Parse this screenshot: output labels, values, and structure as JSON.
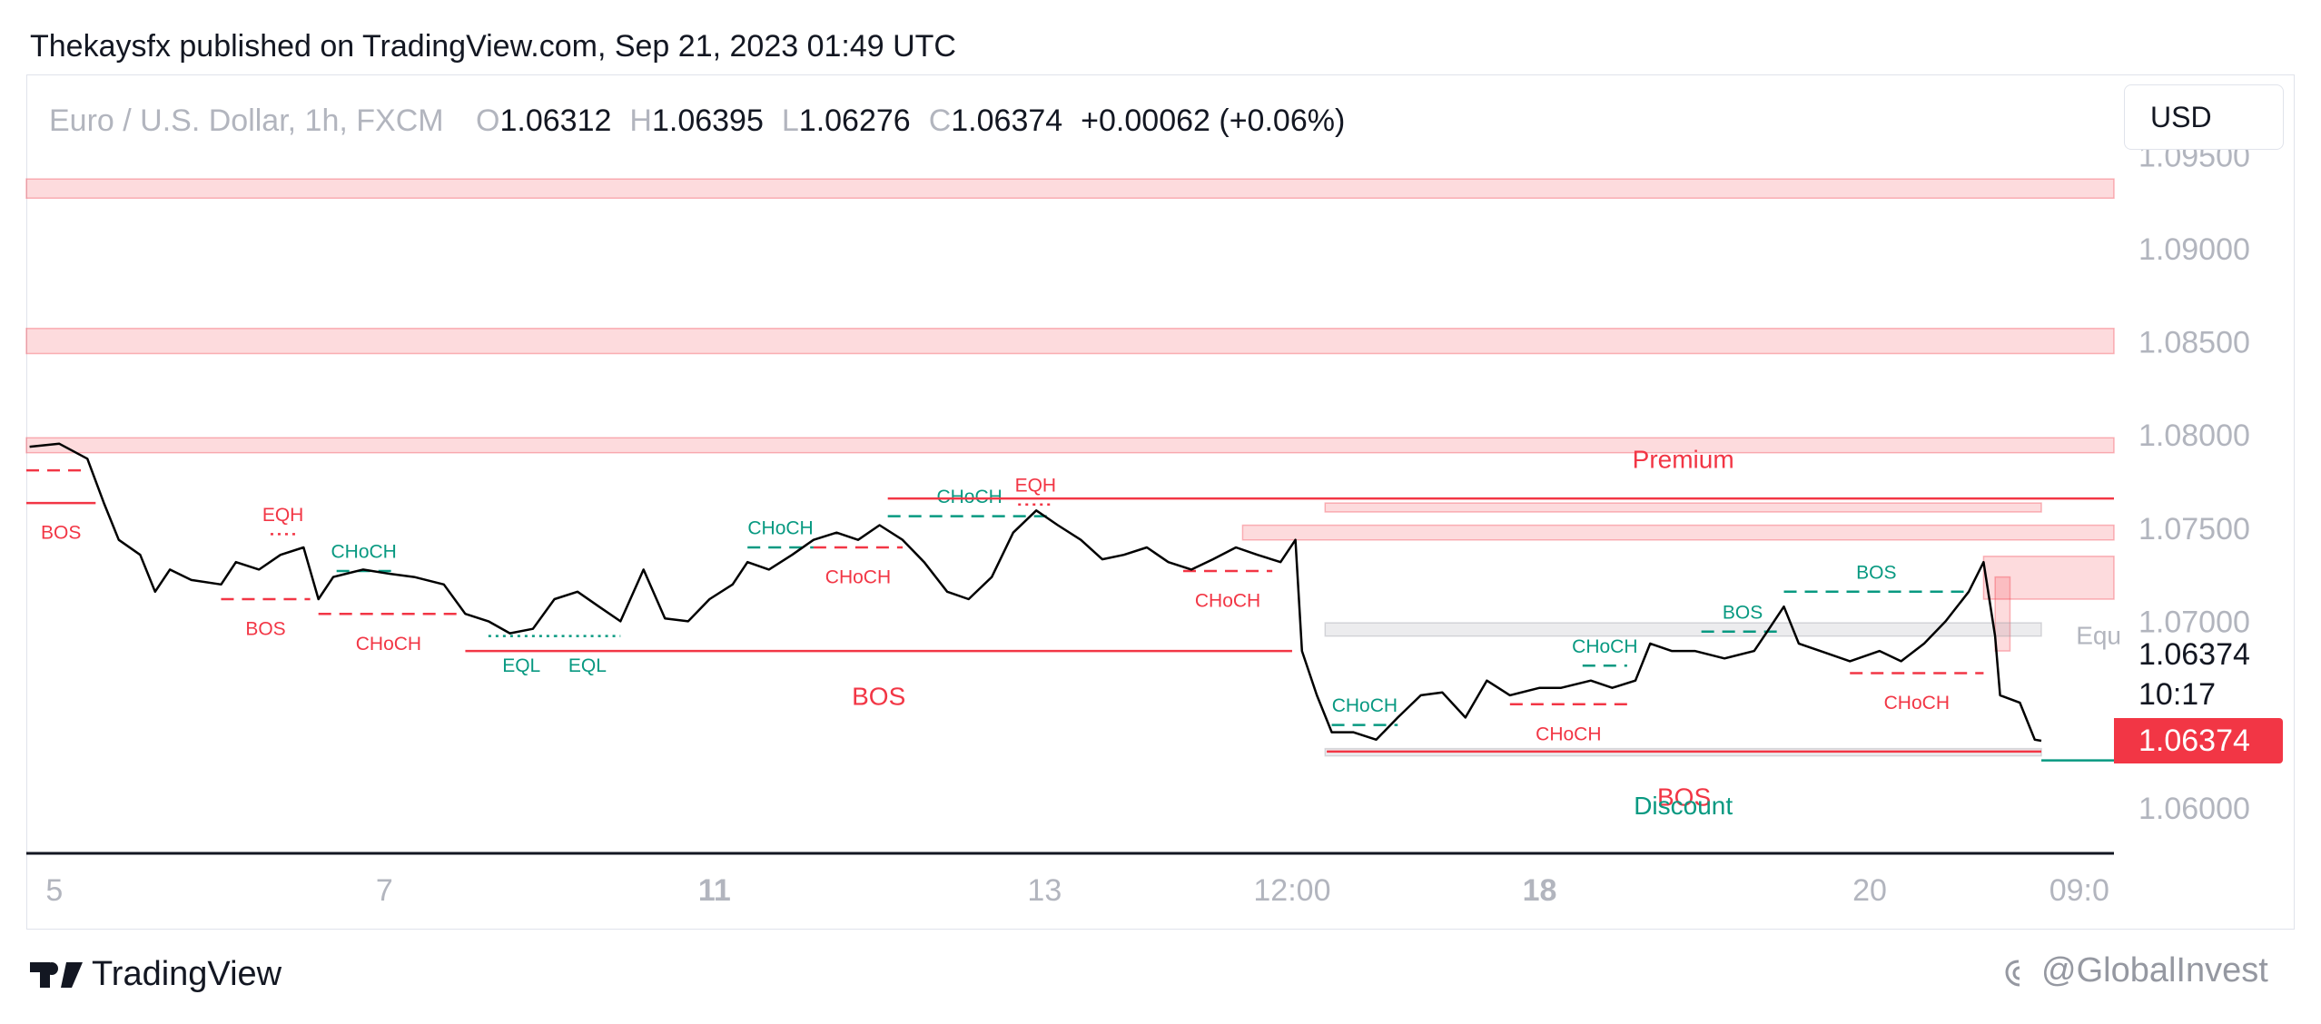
{
  "chart_data": {
    "type": "line",
    "header": "Thekaysfx published on TradingView.com, Sep 21, 2023 01:49 UTC",
    "symbol": "Euro / U.S. Dollar, 1h, FXCM",
    "ohlc": [
      {
        "label": "O",
        "value": 1.06312
      },
      {
        "label": "H",
        "value": 1.06395
      },
      {
        "label": "L",
        "value": 1.06276
      },
      {
        "label": "C",
        "value": 1.06374
      }
    ],
    "change": "+0.00062 (+0.06%)",
    "currency": "USD",
    "last_price": 1.06374,
    "countdown": "10:17",
    "brand": "TradingView",
    "watermark": "@GlobalInvest",
    "color": "#000000",
    "grid": false,
    "x": [
      -0.15,
      0.03,
      0.2,
      0.3,
      0.39,
      0.52,
      0.61,
      0.7,
      0.83,
      1.01,
      1.1,
      1.24,
      1.37,
      1.51,
      1.6,
      1.69,
      1.87,
      2.04,
      2.18,
      2.36,
      2.49,
      2.63,
      2.76,
      2.9,
      3.03,
      3.17,
      3.3,
      3.43,
      3.57,
      3.7,
      3.84,
      3.97,
      4.11,
      4.2,
      4.33,
      4.47,
      4.6,
      4.74,
      4.87,
      5.0,
      5.14,
      5.27,
      5.41,
      5.54,
      5.68,
      5.81,
      5.95,
      6.08,
      6.22,
      6.35,
      6.48,
      6.62,
      6.75,
      6.89,
      7.02,
      7.16,
      7.29,
      7.43,
      7.52,
      7.56,
      7.65,
      7.74,
      7.87,
      8.01,
      8.14,
      8.28,
      8.41,
      8.55,
      8.68,
      8.82,
      9.0,
      9.13,
      9.31,
      9.44,
      9.58,
      9.67,
      9.8,
      9.94,
      10.12,
      10.3,
      10.39,
      10.48,
      10.57,
      10.7,
      10.88,
      11.06,
      11.19,
      11.33,
      11.46,
      11.6,
      11.69,
      11.76,
      11.79,
      11.91,
      12.0,
      12.04
    ],
    "values": [
      1.07952,
      1.07968,
      1.07888,
      1.0765,
      1.07452,
      1.07372,
      1.07174,
      1.07293,
      1.07237,
      1.07213,
      1.07333,
      1.07293,
      1.07372,
      1.07412,
      1.07134,
      1.07253,
      1.07293,
      1.07269,
      1.07253,
      1.07213,
      1.07055,
      1.07015,
      1.06951,
      1.06975,
      1.07134,
      1.07174,
      1.07094,
      1.07015,
      1.07293,
      1.07031,
      1.07015,
      1.07134,
      1.07213,
      1.07333,
      1.07293,
      1.07372,
      1.07452,
      1.07491,
      1.07452,
      1.07531,
      1.07452,
      1.07333,
      1.07174,
      1.07134,
      1.07253,
      1.07491,
      1.0761,
      1.07531,
      1.07452,
      1.07348,
      1.07372,
      1.07412,
      1.07333,
      1.07293,
      1.07348,
      1.07412,
      1.07372,
      1.07333,
      1.07452,
      1.06856,
      1.06618,
      1.0642,
      1.0642,
      1.0638,
      1.06499,
      1.06618,
      1.06634,
      1.06499,
      1.06697,
      1.06618,
      1.06658,
      1.06658,
      1.06697,
      1.06658,
      1.06697,
      1.06896,
      1.06856,
      1.06856,
      1.06816,
      1.06856,
      1.06975,
      1.07094,
      1.06896,
      1.06856,
      1.06801,
      1.06856,
      1.06801,
      1.06896,
      1.07015,
      1.07174,
      1.07333,
      1.06936,
      1.06618,
      1.06578,
      1.0638,
      1.06374
    ],
    "xlim": [
      -0.17,
      12.48
    ],
    "ylim": [
      1.0577,
      1.0995
    ],
    "xticks": [
      {
        "value": 0,
        "label": "5"
      },
      {
        "value": 2,
        "label": "7"
      },
      {
        "value": 4,
        "label": "11",
        "bold": true
      },
      {
        "value": 6,
        "label": "13"
      },
      {
        "value": 7.5,
        "label": "12:00"
      },
      {
        "value": 9,
        "label": "18",
        "bold": true
      },
      {
        "value": 11,
        "label": "20"
      },
      {
        "value": 12.27,
        "label": "09:0"
      }
    ],
    "yticks": [
      {
        "value": 1.095,
        "label": "1.09500"
      },
      {
        "value": 1.09,
        "label": "1.09000"
      },
      {
        "value": 1.085,
        "label": "1.08500"
      },
      {
        "value": 1.08,
        "label": "1.08000"
      },
      {
        "value": 1.075,
        "label": "1.07500"
      },
      {
        "value": 1.07,
        "label": "1.07000"
      },
      {
        "value": 1.06,
        "label": "1.06000"
      }
    ],
    "zones": [
      {
        "y": [
          1.09389,
          1.09286
        ],
        "x": [
          -0.17,
          12.48
        ],
        "color": "#f23645"
      },
      {
        "y": [
          1.08587,
          1.08452
        ],
        "x": [
          -0.17,
          12.48
        ],
        "color": "#f23645"
      },
      {
        "y": [
          1.08,
          1.0792
        ],
        "x": [
          -0.17,
          12.48
        ],
        "color": "#f23645"
      },
      {
        "y": [
          1.0765,
          1.07602
        ],
        "x": [
          7.7,
          12.04
        ],
        "color": "#f23645"
      },
      {
        "y": [
          1.07531,
          1.07452
        ],
        "x": [
          7.2,
          12.48
        ],
        "color": "#f23645"
      },
      {
        "y": [
          1.07364,
          1.07134
        ],
        "x": [
          11.69,
          12.48
        ],
        "color": "#f23645"
      },
      {
        "y": [
          1.07253,
          1.06856
        ],
        "x": [
          11.76,
          11.85
        ],
        "color": "#f23645"
      },
      {
        "y": [
          1.07007,
          1.06936
        ],
        "x": [
          7.7,
          12.04
        ],
        "color": "#9598a1"
      },
      {
        "y": [
          1.06332,
          1.06293
        ],
        "x": [
          7.7,
          12.04
        ],
        "color": "#9598a1"
      }
    ],
    "levels": [
      {
        "label": "BOS",
        "price": 1.0765,
        "x": [
          -0.17,
          0.25
        ],
        "color": "#f23645",
        "dash": "solid",
        "side": "below"
      },
      {
        "price": 1.07825,
        "x": [
          -0.17,
          0.21
        ],
        "color": "#f23645",
        "dash": "dashed"
      },
      {
        "label": "EQH",
        "price": 1.07483,
        "x": [
          1.31,
          1.46
        ],
        "color": "#f23645",
        "dash": "dotted",
        "side": "above"
      },
      {
        "label": "CHoCH",
        "price": 1.07285,
        "x": [
          1.71,
          2.04
        ],
        "color": "#089981",
        "dash": "dashed",
        "side": "above"
      },
      {
        "label": "BOS",
        "price": 1.07134,
        "x": [
          1.01,
          1.55
        ],
        "color": "#f23645",
        "dash": "dashed",
        "side": "below"
      },
      {
        "label": "CHoCH",
        "price": 1.07055,
        "x": [
          1.6,
          2.45
        ],
        "color": "#f23645",
        "dash": "dashed",
        "side": "below"
      },
      {
        "label": "BOS",
        "price": 1.06856,
        "x": [
          2.49,
          7.5
        ],
        "color": "#f23645",
        "dash": "solid",
        "side": "below",
        "size": "large"
      },
      {
        "label": "EQL",
        "price": 1.06936,
        "x": [
          2.63,
          3.03
        ],
        "color": "#089981",
        "dash": "dotted",
        "side": "below"
      },
      {
        "label": "EQL",
        "price": 1.06936,
        "x": [
          3.03,
          3.43
        ],
        "color": "#089981",
        "dash": "dotted",
        "side": "below"
      },
      {
        "label": "CHoCH",
        "price": 1.07412,
        "x": [
          4.2,
          4.6
        ],
        "color": "#089981",
        "dash": "dashed",
        "side": "above"
      },
      {
        "label": "CHoCH",
        "price": 1.07579,
        "x": [
          5.05,
          6.04
        ],
        "color": "#089981",
        "dash": "dashed",
        "side": "above"
      },
      {
        "label": "CHoCH",
        "price": 1.07412,
        "x": [
          4.6,
          5.14
        ],
        "color": "#f23645",
        "dash": "dashed",
        "side": "below"
      },
      {
        "label": "EQH",
        "price": 1.07642,
        "x": [
          5.84,
          6.05
        ],
        "color": "#f23645",
        "dash": "dotted",
        "side": "above"
      },
      {
        "price": 1.07674,
        "x": [
          5.05,
          12.48
        ],
        "color": "#f23645",
        "dash": "solid"
      },
      {
        "label": "CHoCH",
        "price": 1.07285,
        "x": [
          6.84,
          7.38
        ],
        "color": "#f23645",
        "dash": "dashed",
        "side": "below"
      },
      {
        "label": "CHoCH",
        "price": 1.06459,
        "x": [
          7.74,
          8.14
        ],
        "color": "#089981",
        "dash": "dashed",
        "side": "above"
      },
      {
        "label": "CHoCH",
        "price": 1.0657,
        "x": [
          8.82,
          9.53
        ],
        "color": "#f23645",
        "dash": "dashed",
        "side": "below"
      },
      {
        "label": "CHoCH",
        "price": 1.06777,
        "x": [
          9.26,
          9.53
        ],
        "color": "#089981",
        "dash": "dashed",
        "side": "above"
      },
      {
        "label": "BOS",
        "price": 1.0696,
        "x": [
          9.98,
          10.48
        ],
        "color": "#089981",
        "dash": "dashed",
        "side": "above"
      },
      {
        "label": "BOS",
        "price": 1.07174,
        "x": [
          10.48,
          11.6
        ],
        "color": "#089981",
        "dash": "dashed",
        "side": "above"
      },
      {
        "label": "CHoCH",
        "price": 1.06737,
        "x": [
          10.88,
          11.69
        ],
        "color": "#f23645",
        "dash": "dashed",
        "side": "below"
      },
      {
        "label": "BOS",
        "price": 1.06316,
        "x": [
          7.71,
          12.04
        ],
        "color": "#f23645",
        "dash": "solid",
        "side": "below",
        "size": "large"
      },
      {
        "price": 1.06269,
        "x": [
          12.04,
          12.48
        ],
        "color": "#089981",
        "dash": "solid"
      }
    ],
    "annotations": [
      {
        "text": "Premium",
        "x": 9.87,
        "y": 1.07873,
        "color": "#f23645",
        "anchor": "middle"
      },
      {
        "text": "Discount",
        "x": 9.87,
        "y": 1.06015,
        "color": "#089981",
        "anchor": "middle"
      },
      {
        "text": "Equ",
        "x": 12.25,
        "y": 1.06928,
        "color": "#b2b5be",
        "anchor": "start"
      }
    ]
  }
}
